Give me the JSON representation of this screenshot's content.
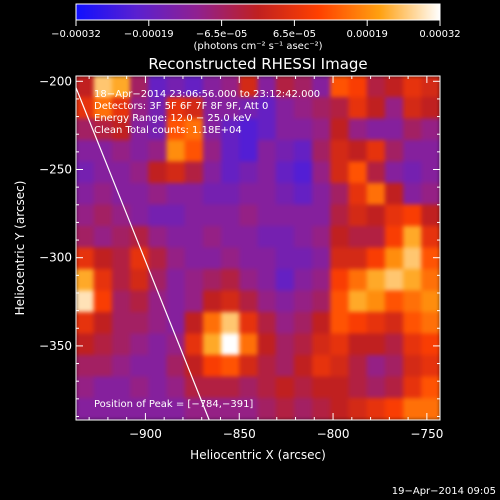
{
  "chart_data": {
    "type": "heatmap",
    "title": "Reconstructed RHESSI Image",
    "xlabel": "Heliocentric X (arcsec)",
    "ylabel": "Heliocentric Y (arcsec)",
    "xlim": [
      -937,
      -743
    ],
    "ylim": [
      -392,
      -197
    ],
    "x_ticks": [
      -900,
      -850,
      -800,
      -750
    ],
    "x_tick_labels": [
      "−900",
      "−850",
      "−800",
      "−750"
    ],
    "y_ticks": [
      -200,
      -250,
      -300,
      -350
    ],
    "y_tick_labels": [
      "−200",
      "−250",
      "−300",
      "−350"
    ],
    "colorbar": {
      "min": -0.00032,
      "max": 0.00032,
      "tick_labels": [
        "−0.00032",
        "−0.00019",
        "−6.5e−05",
        "6.5e−05",
        "0.00019",
        "0.00032"
      ],
      "unit": "(photons cm⁻² s⁻¹ asec⁻²)",
      "colors": [
        "#1010ff",
        "#5a20d0",
        "#902090",
        "#c02020",
        "#ff4000",
        "#ffa010",
        "#ffffff"
      ]
    },
    "annotations": [
      "18−Apr−2014 23:06:56.000 to 23:12:42.000",
      "Detectors: 3F 5F 6F 7F 8F 9F, Att 0",
      "Energy Range: 12.0 − 25.0 keV",
      "Clean    Total counts: 1.18E+04"
    ],
    "peak_label": "Position of Peak = [−784,−391]",
    "peak": [
      -784,
      -391
    ],
    "limb": [
      [
        -938,
        -201
      ],
      [
        -866,
        -392
      ]
    ],
    "values": [
      [
        0.5,
        0.9,
        0.85,
        0.4,
        0.2,
        0.25,
        0.2,
        0.3,
        0.35,
        0.55,
        0.3,
        0.45,
        0.4,
        0.3,
        0.7,
        0.65,
        0.45,
        0.5,
        0.6,
        0.55
      ],
      [
        0.6,
        0.75,
        0.6,
        0.35,
        0.25,
        0.6,
        0.55,
        0.3,
        0.3,
        0.25,
        0.2,
        0.3,
        0.35,
        0.4,
        0.45,
        0.6,
        0.5,
        0.35,
        0.55,
        0.5
      ],
      [
        0.4,
        0.45,
        0.5,
        0.3,
        0.25,
        0.7,
        0.75,
        0.3,
        0.2,
        0.15,
        0.2,
        0.3,
        0.3,
        0.35,
        0.5,
        0.35,
        0.3,
        0.3,
        0.4,
        0.35
      ],
      [
        0.3,
        0.3,
        0.35,
        0.3,
        0.35,
        0.8,
        0.7,
        0.35,
        0.2,
        0.15,
        0.3,
        0.25,
        0.2,
        0.4,
        0.55,
        0.5,
        0.6,
        0.4,
        0.3,
        0.3
      ],
      [
        0.25,
        0.3,
        0.3,
        0.35,
        0.5,
        0.55,
        0.45,
        0.3,
        0.2,
        0.25,
        0.3,
        0.2,
        0.15,
        0.35,
        0.55,
        0.7,
        0.45,
        0.3,
        0.25,
        0.3
      ],
      [
        0.3,
        0.35,
        0.3,
        0.3,
        0.35,
        0.3,
        0.3,
        0.25,
        0.25,
        0.3,
        0.3,
        0.25,
        0.2,
        0.3,
        0.4,
        0.6,
        0.75,
        0.5,
        0.3,
        0.35
      ],
      [
        0.35,
        0.4,
        0.35,
        0.3,
        0.25,
        0.25,
        0.3,
        0.3,
        0.3,
        0.35,
        0.3,
        0.3,
        0.3,
        0.3,
        0.45,
        0.55,
        0.5,
        0.6,
        0.65,
        0.5
      ],
      [
        0.4,
        0.35,
        0.4,
        0.45,
        0.35,
        0.3,
        0.3,
        0.35,
        0.3,
        0.3,
        0.25,
        0.25,
        0.3,
        0.35,
        0.5,
        0.45,
        0.45,
        0.65,
        0.85,
        0.6
      ],
      [
        0.6,
        0.5,
        0.45,
        0.6,
        0.45,
        0.35,
        0.3,
        0.3,
        0.35,
        0.3,
        0.3,
        0.25,
        0.25,
        0.3,
        0.55,
        0.55,
        0.65,
        0.8,
        0.9,
        0.7
      ],
      [
        0.85,
        0.6,
        0.45,
        0.55,
        0.4,
        0.3,
        0.35,
        0.4,
        0.45,
        0.35,
        0.3,
        0.2,
        0.3,
        0.35,
        0.65,
        0.75,
        0.85,
        0.9,
        0.85,
        0.75
      ],
      [
        0.95,
        0.65,
        0.4,
        0.45,
        0.35,
        0.3,
        0.35,
        0.5,
        0.55,
        0.45,
        0.35,
        0.3,
        0.35,
        0.4,
        0.7,
        0.85,
        0.8,
        0.7,
        0.75,
        0.8
      ],
      [
        0.6,
        0.5,
        0.4,
        0.4,
        0.35,
        0.3,
        0.5,
        0.75,
        0.9,
        0.6,
        0.45,
        0.35,
        0.4,
        0.5,
        0.7,
        0.65,
        0.6,
        0.55,
        0.7,
        0.75
      ],
      [
        0.5,
        0.45,
        0.4,
        0.35,
        0.3,
        0.35,
        0.6,
        0.85,
        1.0,
        0.75,
        0.5,
        0.4,
        0.45,
        0.55,
        0.6,
        0.5,
        0.5,
        0.45,
        0.6,
        0.65
      ],
      [
        0.4,
        0.4,
        0.35,
        0.3,
        0.3,
        0.4,
        0.5,
        0.65,
        0.7,
        0.55,
        0.45,
        0.4,
        0.5,
        0.6,
        0.55,
        0.45,
        0.35,
        0.4,
        0.55,
        0.6
      ],
      [
        0.35,
        0.3,
        0.3,
        0.35,
        0.3,
        0.35,
        0.45,
        0.45,
        0.45,
        0.4,
        0.45,
        0.5,
        0.45,
        0.5,
        0.5,
        0.45,
        0.4,
        0.45,
        0.6,
        0.7
      ],
      [
        0.3,
        0.3,
        0.3,
        0.3,
        0.3,
        0.3,
        0.35,
        0.35,
        0.35,
        0.35,
        0.4,
        0.45,
        0.4,
        0.45,
        0.5,
        0.55,
        0.6,
        0.65,
        0.75,
        0.75
      ]
    ]
  },
  "footer": {
    "timestamp": "19−Apr−2014 09:05"
  }
}
